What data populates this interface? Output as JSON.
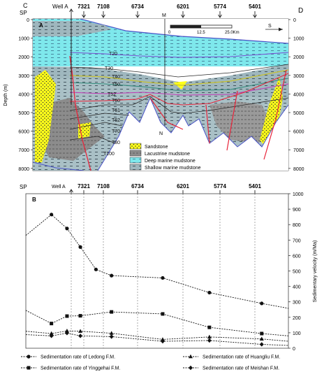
{
  "colors": {
    "deep_marine": "#7ee8ec",
    "shallow_marine": "#9fb7be",
    "lacustrine": "#8c8c8c",
    "sandstone": "#ffff1a",
    "fault": "#e8243a",
    "sea": "#4a53c8",
    "T20": "#7a4fd0",
    "T30": "#2a2a2a",
    "T40": "#c9c230",
    "T50": "#2f8a7a",
    "T52": "#c23ab8",
    "T60": "#e8243a",
    "T61": "#2a2a2a"
  },
  "section": {
    "panel_label": "A",
    "corner_left": "C",
    "corner_right": "D",
    "sp_label": "SP",
    "well_label": "Well A",
    "marker_M": "M",
    "marker_N": "N",
    "scale_zero": "0",
    "scale_mid": "12.5",
    "scale_end": "25.0Km",
    "direction": "S",
    "depth_axis_label": "Depth (m)",
    "depth_ticks_left": [
      "0",
      "1000",
      "2000",
      "3000",
      "4000",
      "5000",
      "6000",
      "7000",
      "8000"
    ],
    "depth_ticks_right": [
      "0",
      "1000",
      "2000",
      "3000",
      "4000",
      "5000",
      "6000",
      "7000",
      "8000"
    ],
    "horizon_labels": [
      "T20",
      "T30",
      "T40",
      "T50",
      "T52",
      "T60",
      "T61",
      "T62",
      "T70",
      "T80",
      "T100"
    ],
    "sp_numbers": [
      "7321",
      "7108",
      "6734",
      "6201",
      "5774",
      "5401"
    ],
    "legend": [
      "Sandstone",
      "Lacustrine mudstone",
      "Deep marine mudstone",
      "Shallow marine mudstone"
    ]
  },
  "rate_panel": {
    "panel_label": "B",
    "sp_label": "SP",
    "well_label": "Well A"
  },
  "chart_data": {
    "type": "line",
    "title": "",
    "xlabel": "",
    "ylabel": "Sedimentary velocity (m/Ma)",
    "ylim": [
      0,
      1000
    ],
    "y_ticks": [
      "0",
      "100",
      "200",
      "300",
      "400",
      "500",
      "600",
      "700",
      "800",
      "900",
      "1000"
    ],
    "x_ticks": [
      "7321",
      "7108",
      "6734",
      "6201",
      "5774",
      "5401"
    ],
    "series": [
      {
        "name": "Sedimentation rate of Ledong F.M.",
        "marker": "circle",
        "points": [
          [
            0,
            730
          ],
          [
            0.23,
            865
          ],
          [
            0.37,
            775
          ],
          [
            0.49,
            655
          ],
          [
            0.63,
            510
          ],
          [
            0.77,
            470
          ],
          [
            1.23,
            455
          ],
          [
            1.65,
            360
          ],
          [
            2.12,
            290
          ],
          [
            2.36,
            258
          ]
        ]
      },
      {
        "name": "Sedimentation rate of Yinggehai F.M.",
        "marker": "square",
        "points": [
          [
            0,
            245
          ],
          [
            0.23,
            160
          ],
          [
            0.37,
            208
          ],
          [
            0.49,
            210
          ],
          [
            0.77,
            235
          ],
          [
            1.23,
            222
          ],
          [
            1.65,
            135
          ],
          [
            2.12,
            95
          ],
          [
            2.36,
            80
          ]
        ]
      },
      {
        "name": "Sedimentation rate of Huangliu F.M.",
        "marker": "triangle",
        "points": [
          [
            0,
            110
          ],
          [
            0.23,
            95
          ],
          [
            0.37,
            112
          ],
          [
            0.49,
            110
          ],
          [
            0.77,
            97
          ],
          [
            1.23,
            57
          ],
          [
            1.65,
            73
          ],
          [
            2.12,
            60
          ],
          [
            2.36,
            45
          ]
        ]
      },
      {
        "name": "Sedimentation rate of Meishan F.M.",
        "marker": "diamond",
        "points": [
          [
            0,
            88
          ],
          [
            0.23,
            80
          ],
          [
            0.37,
            98
          ],
          [
            0.49,
            80
          ],
          [
            0.77,
            75
          ],
          [
            1.23,
            45
          ],
          [
            1.65,
            50
          ],
          [
            2.12,
            25
          ],
          [
            2.36,
            18
          ]
        ]
      }
    ]
  }
}
